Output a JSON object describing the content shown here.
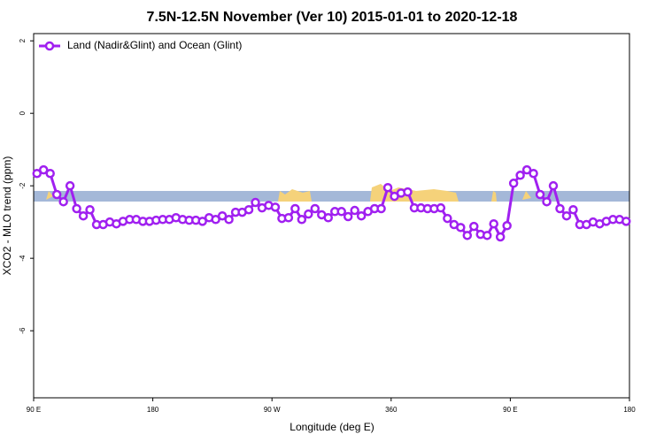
{
  "chart_data": {
    "type": "line",
    "title": "7.5N-12.5N November (Ver 10)   2015-01-01 to 2020-12-18",
    "xlabel": "Longitude (deg E)",
    "ylabel": "XCO2 - MLO trend (ppm)",
    "x": [
      92.5,
      97.5,
      102.5,
      107.5,
      112.5,
      117.5,
      122.5,
      127.5,
      132.5,
      137.5,
      142.5,
      147.5,
      152.5,
      157.5,
      162.5,
      167.5,
      172.5,
      177.5,
      182.5,
      187.5,
      192.5,
      197.5,
      202.5,
      207.5,
      212.5,
      217.5,
      222.5,
      227.5,
      232.5,
      237.5,
      242.5,
      247.5,
      252.5,
      257.5,
      262.5,
      267.5,
      272.5,
      277.5,
      282.5,
      287.5,
      292.5,
      297.5,
      302.5,
      307.5,
      312.5,
      317.5,
      322.5,
      327.5,
      332.5,
      337.5,
      342.5,
      347.5,
      352.5,
      357.5,
      362.5,
      367.5,
      372.5,
      377.5,
      382.5,
      387.5,
      392.5,
      397.5,
      402.5,
      407.5,
      412.5,
      417.5,
      422.5,
      427.5,
      432.5,
      437.5,
      442.5,
      447.5,
      452.5,
      457.5,
      462.5,
      467.5,
      472.5,
      477.5,
      482.5,
      487.5,
      492.5,
      497.5,
      502.5,
      507.5,
      512.5,
      517.5,
      522.5,
      527.5,
      532.5,
      537.5
    ],
    "series": [
      {
        "name": "Land (Nadir&Glint) and Ocean (Glint)",
        "color": "#a020f0",
        "values": [
          -1.66,
          -1.56,
          -1.66,
          -2.24,
          -2.44,
          -2.0,
          -2.63,
          -2.83,
          -2.66,
          -3.07,
          -3.07,
          -3.0,
          -3.05,
          -2.98,
          -2.93,
          -2.93,
          -2.98,
          -2.98,
          -2.95,
          -2.93,
          -2.93,
          -2.88,
          -2.93,
          -2.95,
          -2.95,
          -2.98,
          -2.88,
          -2.93,
          -2.83,
          -2.93,
          -2.73,
          -2.73,
          -2.66,
          -2.46,
          -2.61,
          -2.54,
          -2.59,
          -2.9,
          -2.88,
          -2.63,
          -2.93,
          -2.78,
          -2.63,
          -2.8,
          -2.88,
          -2.71,
          -2.71,
          -2.85,
          -2.68,
          -2.83,
          -2.71,
          -2.63,
          -2.63,
          -2.05,
          -2.29,
          -2.2,
          -2.17,
          -2.61,
          -2.61,
          -2.63,
          -2.63,
          -2.61,
          -2.9,
          -3.07,
          -3.15,
          -3.37,
          -3.12,
          -3.34,
          -3.37,
          -3.05,
          -3.41,
          -3.1,
          -1.93,
          -1.71,
          -1.56,
          -1.66,
          -2.24,
          -2.44,
          -2.0,
          -2.63,
          -2.83,
          -2.66,
          -3.07,
          -3.07,
          -3.0,
          -3.05,
          -2.98,
          -2.93,
          -2.93,
          -2.98
        ]
      }
    ],
    "xlim": [
      90,
      540
    ],
    "xticks": [
      {
        "value": 90,
        "label": "90 E"
      },
      180,
      {
        "value": 270,
        "label": "90 W"
      },
      360,
      {
        "value": 450,
        "label": "90 E"
      },
      {
        "value": 540,
        "label": "180"
      }
    ],
    "ylim": [
      -7.85,
      2.2
    ],
    "yticks": [
      -6,
      -4,
      -2,
      0,
      2
    ],
    "legend": "upper left"
  }
}
